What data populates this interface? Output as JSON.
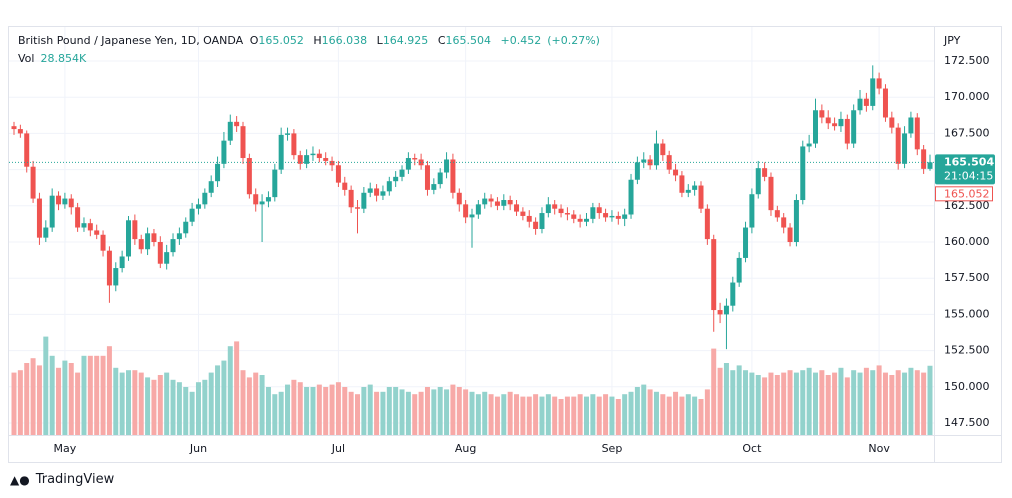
{
  "chart_data": {
    "type": "candlestick",
    "title": "British Pound / Japanese Yen, 1D, OANDA",
    "ohlc_letters": [
      "O",
      "H",
      "L",
      "C"
    ],
    "change": "+0.452",
    "change_pct": "(+0.27%)",
    "volume_title": "Vol",
    "volume_value_label": "28.854K",
    "y_axis_label": "JPY",
    "countdown": "21:04:15",
    "brand": "TradingView",
    "up_color": "#26a69a",
    "down_color": "#ef5350",
    "volume_up_color": "#92d2cc",
    "volume_down_color": "#f7a9a7",
    "grid": true,
    "ylim": [
      146.67,
      174.85
    ],
    "yticks": [
      {
        "value": 147.5,
        "label": "147.500"
      },
      {
        "value": 150,
        "label": "150.000"
      },
      {
        "value": 152.5,
        "label": "152.500"
      },
      {
        "value": 155,
        "label": "155.000"
      },
      {
        "value": 157.5,
        "label": "157.500"
      },
      {
        "value": 160,
        "label": "160.000"
      },
      {
        "value": 162.5,
        "label": "162.500"
      },
      {
        "value": 165,
        "label": "165.000"
      },
      {
        "value": 167.5,
        "label": "167.500"
      },
      {
        "value": 170,
        "label": "170.000"
      },
      {
        "value": 172.5,
        "label": "172.500"
      }
    ],
    "volume_ylim": [
      0,
      170
    ],
    "categories": [
      null,
      null,
      null,
      null,
      null,
      null,
      null,
      null,
      "May",
      null,
      null,
      null,
      null,
      null,
      null,
      null,
      null,
      null,
      null,
      null,
      null,
      null,
      null,
      null,
      null,
      null,
      null,
      null,
      null,
      "Jun",
      null,
      null,
      null,
      null,
      null,
      null,
      null,
      null,
      null,
      null,
      null,
      null,
      null,
      null,
      null,
      null,
      null,
      null,
      null,
      null,
      null,
      "Jul",
      null,
      null,
      null,
      null,
      null,
      null,
      null,
      null,
      null,
      null,
      null,
      null,
      null,
      null,
      null,
      null,
      null,
      null,
      null,
      "Aug",
      null,
      null,
      null,
      null,
      null,
      null,
      null,
      null,
      null,
      null,
      null,
      null,
      null,
      null,
      null,
      null,
      null,
      null,
      null,
      null,
      null,
      null,
      "Sep",
      null,
      null,
      null,
      null,
      null,
      null,
      null,
      null,
      null,
      null,
      null,
      null,
      null,
      null,
      null,
      null,
      null,
      null,
      null,
      null,
      null,
      "Oct",
      null,
      null,
      null,
      null,
      null,
      null,
      null,
      null,
      null,
      null,
      null,
      null,
      null,
      null,
      null,
      null,
      null,
      null,
      null,
      "Nov",
      null,
      null,
      null,
      null,
      null,
      null,
      null,
      null
    ],
    "open": [
      168.0,
      167.8,
      167.5,
      165.2,
      163.0,
      160.3,
      161.0,
      163.2,
      162.6,
      163.0,
      162.4,
      161.0,
      161.3,
      160.8,
      160.5,
      159.4,
      157.0,
      158.2,
      159.0,
      161.5,
      160.2,
      159.5,
      160.6,
      160.0,
      158.5,
      159.3,
      160.2,
      160.6,
      161.4,
      162.3,
      162.6,
      163.4,
      164.2,
      165.4,
      167.0,
      168.3,
      168.0,
      165.8,
      163.3,
      162.6,
      162.8,
      163.1,
      165.0,
      167.4,
      167.5,
      166.0,
      165.4,
      166.0,
      166.1,
      165.8,
      165.6,
      165.3,
      164.1,
      163.6,
      162.4,
      162.3,
      163.4,
      163.7,
      163.2,
      163.5,
      164.2,
      164.5,
      165.0,
      165.8,
      165.7,
      165.3,
      163.6,
      164.0,
      164.8,
      165.7,
      163.4,
      162.6,
      161.7,
      161.9,
      162.6,
      163.0,
      162.8,
      162.5,
      162.9,
      162.6,
      162.1,
      161.8,
      161.4,
      160.9,
      162.0,
      162.6,
      162.3,
      162.0,
      161.9,
      161.6,
      161.4,
      161.6,
      162.4,
      162.0,
      161.7,
      161.8,
      161.6,
      161.9,
      164.3,
      165.5,
      165.7,
      165.3,
      166.8,
      166.0,
      165.0,
      164.6,
      163.4,
      163.6,
      163.9,
      162.3,
      160.2,
      155.3,
      155.0,
      155.6,
      157.2,
      158.9,
      161.0,
      163.3,
      165.1,
      164.5,
      162.2,
      161.7,
      161.0,
      160.0,
      162.9,
      166.6,
      166.8,
      169.1,
      168.6,
      168.2,
      168.0,
      168.5,
      166.8,
      169.1,
      169.9,
      169.4,
      171.3,
      170.6,
      168.6,
      167.9,
      165.4,
      167.5,
      168.6,
      166.4,
      165.052
    ],
    "high": [
      168.3,
      168.1,
      167.7,
      165.6,
      163.4,
      161.5,
      163.7,
      163.5,
      163.4,
      163.3,
      162.7,
      161.7,
      161.6,
      161.2,
      160.8,
      159.7,
      158.6,
      159.4,
      161.8,
      161.9,
      160.5,
      161.0,
      160.9,
      160.4,
      159.8,
      160.6,
      161.0,
      161.7,
      162.7,
      163.0,
      163.7,
      164.6,
      165.9,
      167.6,
      168.8,
      168.7,
      168.3,
      166.1,
      163.7,
      163.3,
      163.5,
      165.4,
      167.9,
      167.9,
      167.8,
      166.3,
      166.4,
      166.6,
      166.4,
      166.2,
      165.9,
      165.6,
      164.5,
      163.9,
      162.9,
      163.8,
      164.1,
      164.0,
      163.9,
      164.5,
      164.9,
      165.3,
      166.2,
      166.1,
      166.1,
      165.6,
      164.4,
      165.1,
      166.2,
      166.1,
      163.7,
      162.9,
      162.3,
      162.9,
      163.4,
      163.3,
      163.1,
      163.3,
      163.2,
      162.9,
      162.4,
      162.2,
      161.7,
      162.4,
      163.1,
      162.9,
      162.6,
      162.4,
      162.2,
      161.9,
      162.0,
      162.7,
      162.7,
      162.3,
      162.2,
      162.1,
      162.3,
      164.7,
      165.9,
      166.2,
      166.0,
      167.7,
      167.1,
      166.3,
      165.4,
      164.9,
      164.0,
      164.2,
      164.2,
      162.6,
      160.5,
      155.8,
      156.1,
      157.6,
      159.3,
      161.4,
      163.7,
      165.6,
      165.5,
      164.8,
      162.5,
      162.0,
      161.3,
      163.3,
      167.0,
      167.4,
      169.9,
      169.5,
      169.1,
      168.6,
      169.0,
      168.8,
      169.5,
      170.5,
      170.3,
      172.2,
      171.7,
      170.9,
      169.0,
      168.2,
      168.0,
      169.0,
      168.9,
      166.7,
      166.038
    ],
    "low": [
      167.4,
      167.2,
      164.8,
      162.7,
      159.8,
      160.0,
      160.7,
      162.2,
      162.3,
      161.9,
      160.7,
      160.7,
      160.4,
      160.2,
      159.0,
      155.8,
      156.6,
      157.9,
      158.7,
      159.8,
      159.2,
      159.1,
      159.7,
      158.2,
      158.1,
      159.0,
      159.8,
      160.3,
      161.1,
      161.9,
      162.3,
      163.1,
      163.8,
      165.1,
      166.7,
      167.6,
      165.4,
      163.0,
      162.1,
      160.0,
      162.4,
      162.8,
      164.7,
      167.0,
      165.7,
      165.0,
      165.1,
      165.6,
      165.5,
      165.3,
      164.9,
      163.8,
      163.2,
      162.0,
      160.6,
      162.0,
      163.1,
      162.8,
      162.9,
      163.2,
      163.8,
      164.2,
      164.7,
      165.3,
      165.0,
      163.2,
      163.3,
      163.7,
      164.4,
      163.0,
      162.1,
      161.3,
      159.6,
      161.6,
      162.3,
      162.4,
      162.2,
      162.2,
      162.2,
      161.8,
      161.5,
      161.0,
      160.5,
      160.6,
      161.7,
      161.9,
      161.7,
      161.5,
      161.3,
      161.0,
      161.1,
      161.3,
      161.6,
      161.4,
      161.4,
      161.2,
      161.1,
      161.6,
      164.0,
      165.1,
      165.0,
      165.0,
      165.6,
      164.7,
      164.2,
      163.1,
      163.1,
      163.2,
      162.0,
      159.8,
      153.8,
      154.4,
      152.6,
      155.2,
      156.9,
      158.6,
      160.6,
      163.0,
      164.2,
      161.8,
      161.4,
      160.6,
      159.7,
      159.7,
      162.6,
      166.2,
      166.5,
      168.2,
      167.8,
      167.7,
      167.6,
      166.4,
      166.5,
      168.8,
      169.0,
      169.1,
      170.2,
      168.3,
      167.5,
      165.0,
      165.1,
      167.2,
      166.0,
      164.7,
      164.925
    ],
    "close": [
      167.8,
      167.5,
      165.2,
      163.0,
      160.3,
      161.0,
      163.2,
      162.6,
      163.0,
      162.4,
      161.0,
      161.3,
      160.8,
      160.5,
      159.4,
      157.0,
      158.2,
      159.0,
      161.5,
      160.2,
      159.5,
      160.6,
      160.0,
      158.5,
      159.3,
      160.2,
      160.6,
      161.4,
      162.3,
      162.6,
      163.4,
      164.2,
      165.4,
      167.0,
      168.3,
      168.0,
      165.8,
      163.3,
      162.6,
      162.8,
      163.1,
      165.0,
      167.4,
      167.5,
      166.0,
      165.4,
      166.0,
      166.1,
      165.8,
      165.6,
      165.3,
      164.1,
      163.6,
      162.4,
      162.3,
      163.4,
      163.7,
      163.2,
      163.5,
      164.2,
      164.5,
      165.0,
      165.8,
      165.7,
      165.3,
      163.6,
      164.0,
      164.8,
      165.7,
      163.4,
      162.6,
      161.7,
      161.9,
      162.6,
      163.0,
      162.8,
      162.5,
      162.9,
      162.6,
      162.1,
      161.8,
      161.4,
      160.9,
      162.0,
      162.6,
      162.3,
      162.0,
      161.9,
      161.6,
      161.4,
      161.6,
      162.4,
      162.0,
      161.7,
      161.8,
      161.6,
      161.9,
      164.3,
      165.5,
      165.7,
      165.3,
      166.8,
      166.0,
      165.0,
      164.6,
      163.4,
      163.6,
      163.9,
      162.3,
      160.2,
      155.3,
      155.0,
      155.6,
      157.2,
      158.9,
      161.0,
      163.3,
      165.1,
      164.5,
      162.2,
      161.7,
      161.0,
      160.0,
      162.9,
      166.6,
      166.8,
      169.1,
      168.6,
      168.2,
      168.0,
      168.5,
      166.8,
      169.1,
      169.9,
      169.4,
      171.3,
      170.6,
      168.6,
      167.9,
      165.4,
      167.5,
      168.6,
      166.4,
      165.052,
      165.504
    ],
    "volume": [
      26,
      27,
      30,
      32,
      29,
      41,
      33,
      28,
      31,
      30,
      26,
      33,
      33,
      33,
      33,
      37,
      28,
      26,
      27,
      27,
      26,
      24,
      23,
      25,
      26,
      23,
      22,
      20,
      18,
      22,
      23,
      26,
      29,
      31,
      37,
      39,
      27,
      24,
      26,
      25,
      20,
      17,
      18,
      21,
      23,
      22,
      20,
      20,
      21,
      20,
      21,
      22,
      20,
      18,
      17,
      20,
      21,
      18,
      18,
      20,
      20,
      19,
      18,
      17,
      18,
      20,
      19,
      20,
      19,
      21,
      20,
      19,
      18,
      17,
      18,
      17,
      16,
      17,
      18,
      17,
      16,
      16,
      17,
      16,
      17,
      16,
      15,
      16,
      16,
      17,
      16,
      17,
      16,
      17,
      16,
      15,
      17,
      18,
      20,
      21,
      19,
      18,
      17,
      16,
      18,
      16,
      17,
      16,
      15,
      19,
      36,
      28,
      30,
      27,
      29,
      27,
      26,
      25,
      24,
      26,
      25,
      26,
      27,
      26,
      27,
      28,
      26,
      27,
      25,
      26,
      28,
      24,
      27,
      26,
      28,
      27,
      29,
      26,
      25,
      27,
      26,
      28,
      27,
      26,
      28.854
    ]
  }
}
